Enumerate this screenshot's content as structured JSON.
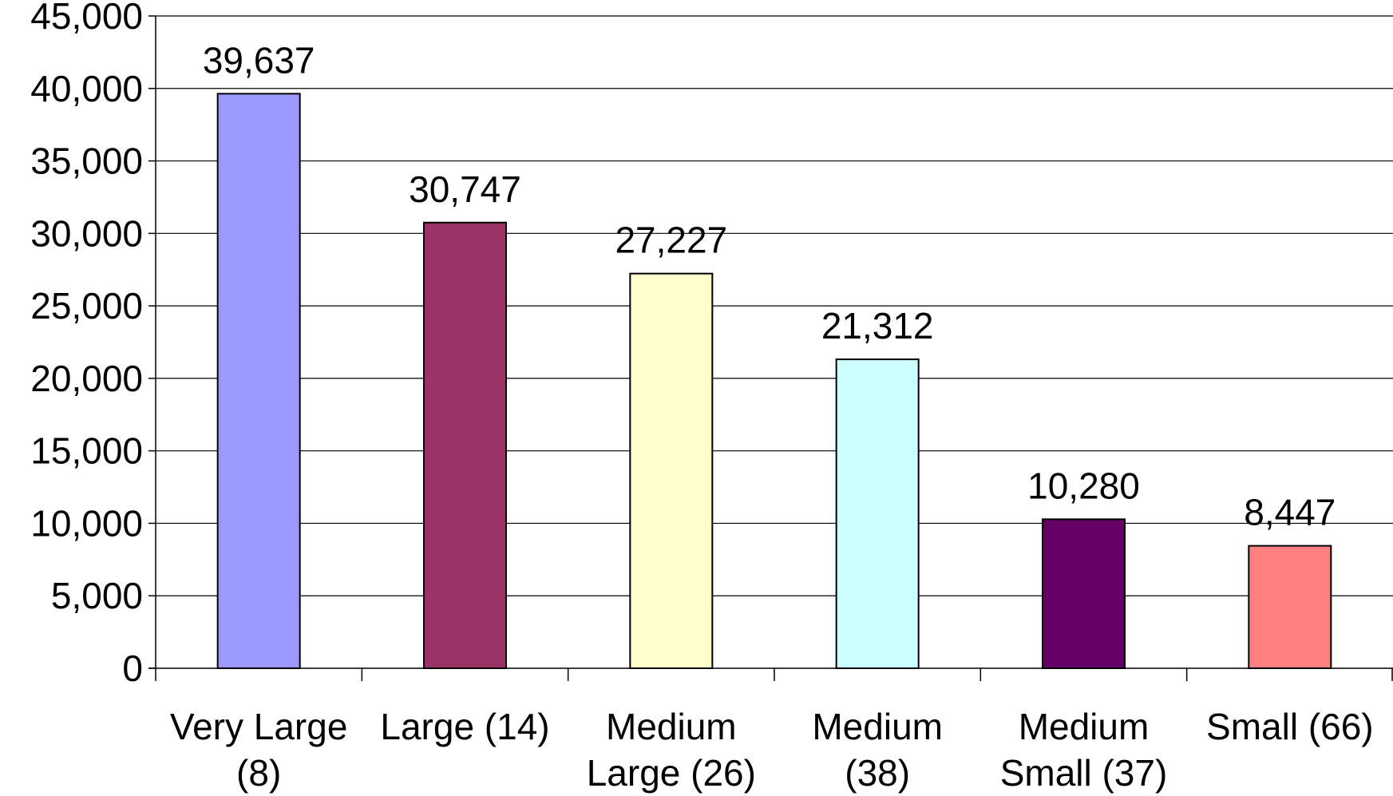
{
  "chart_data": {
    "type": "bar",
    "title": "",
    "xlabel": "",
    "ylabel": "",
    "ylim": [
      0,
      45000
    ],
    "yticks": [
      0,
      5000,
      10000,
      15000,
      20000,
      25000,
      30000,
      35000,
      40000,
      45000
    ],
    "ytick_labels": [
      "0",
      "5,000",
      "10,000",
      "15,000",
      "20,000",
      "25,000",
      "30,000",
      "35,000",
      "40,000",
      "45,000"
    ],
    "grid": true,
    "legend": "none",
    "categories": [
      [
        "Very Large",
        "(8)"
      ],
      [
        "Large (14)"
      ],
      [
        "Medium",
        "Large (26)"
      ],
      [
        "Medium",
        "(38)"
      ],
      [
        "Medium",
        "Small (37)"
      ],
      [
        "Small (66)"
      ]
    ],
    "values": [
      39637,
      30747,
      27227,
      21312,
      10280,
      8447
    ],
    "data_labels": [
      "39,637",
      "30,747",
      "27,227",
      "21,312",
      "10,280",
      "8,447"
    ],
    "bar_colors": [
      "#9999ff",
      "#993366",
      "#ffffcc",
      "#ccffff",
      "#660066",
      "#ff8080"
    ]
  }
}
